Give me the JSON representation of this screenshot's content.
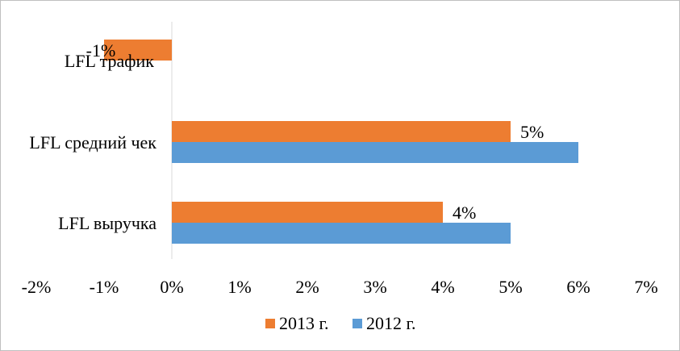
{
  "chart_data": {
    "type": "bar",
    "orientation": "horizontal",
    "categories": [
      "LFL выручка",
      "LFL средний чек",
      "LFL трафик"
    ],
    "series": [
      {
        "name": "2013 г.",
        "color": "#ED7D31",
        "values": [
          0.04,
          0.05,
          -0.01
        ]
      },
      {
        "name": "2012 г.",
        "color": "#5B9BD5",
        "values": [
          0.05,
          0.06,
          null
        ]
      }
    ],
    "data_labels": [
      {
        "series": 0,
        "category": 0,
        "text": "4%"
      },
      {
        "series": 0,
        "category": 1,
        "text": "5%"
      },
      {
        "series": 0,
        "category": 2,
        "text": "-1%"
      }
    ],
    "x_ticks": [
      "-2%",
      "-1%",
      "0%",
      "1%",
      "2%",
      "3%",
      "4%",
      "5%",
      "6%",
      "7%"
    ],
    "xlim": [
      -0.02,
      0.07
    ],
    "grid": false,
    "legend_position": "bottom",
    "title": "",
    "xlabel": "",
    "ylabel": ""
  }
}
